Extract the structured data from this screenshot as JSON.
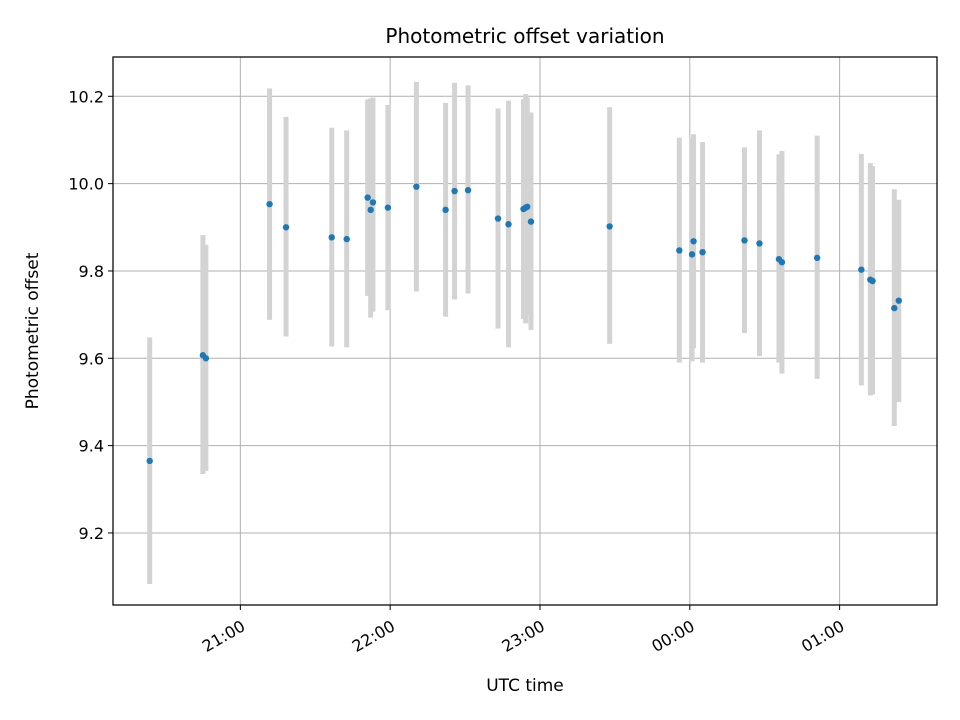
{
  "chart_data": {
    "type": "scatter",
    "title": "Photometric offset variation",
    "xlabel": "UTC time",
    "ylabel": "Photometric offset",
    "x_unit": "hours UTC (values >= 24 fall after midnight)",
    "xlim": [
      20.15,
      25.65
    ],
    "ylim": [
      9.035,
      10.29
    ],
    "x_ticks": [
      {
        "value": 21,
        "label": "21:00"
      },
      {
        "value": 22,
        "label": "22:00"
      },
      {
        "value": 23,
        "label": "23:00"
      },
      {
        "value": 24,
        "label": "00:00"
      },
      {
        "value": 25,
        "label": "01:00"
      }
    ],
    "y_ticks": [
      {
        "value": 9.2,
        "label": "9.2"
      },
      {
        "value": 9.4,
        "label": "9.4"
      },
      {
        "value": 9.6,
        "label": "9.6"
      },
      {
        "value": 9.8,
        "label": "9.8"
      },
      {
        "value": 10.0,
        "label": "10.0"
      },
      {
        "value": 10.2,
        "label": "10.2"
      }
    ],
    "grid": true,
    "x_tick_label_rotation": 30,
    "colors": {
      "marker": "#1f77b4",
      "errorbar": "#d3d3d3",
      "grid": "#b0b0b0",
      "axes": "#000000"
    },
    "series": [
      {
        "points": [
          {
            "x": 20.395,
            "y": 9.365,
            "ylo": 9.083,
            "yhi": 9.648
          },
          {
            "x": 20.75,
            "y": 9.607,
            "ylo": 9.335,
            "yhi": 9.882
          },
          {
            "x": 20.77,
            "y": 9.6,
            "ylo": 9.342,
            "yhi": 9.86
          },
          {
            "x": 21.195,
            "y": 9.953,
            "ylo": 9.688,
            "yhi": 10.218
          },
          {
            "x": 21.305,
            "y": 9.9,
            "ylo": 9.65,
            "yhi": 10.153
          },
          {
            "x": 21.61,
            "y": 9.877,
            "ylo": 9.627,
            "yhi": 10.128
          },
          {
            "x": 21.71,
            "y": 9.873,
            "ylo": 9.625,
            "yhi": 10.122
          },
          {
            "x": 21.85,
            "y": 9.968,
            "ylo": 9.743,
            "yhi": 10.193
          },
          {
            "x": 21.87,
            "y": 9.94,
            "ylo": 9.693,
            "yhi": 10.195
          },
          {
            "x": 21.885,
            "y": 9.957,
            "ylo": 9.707,
            "yhi": 10.197
          },
          {
            "x": 21.985,
            "y": 9.945,
            "ylo": 9.71,
            "yhi": 10.18
          },
          {
            "x": 22.175,
            "y": 9.993,
            "ylo": 9.753,
            "yhi": 10.233
          },
          {
            "x": 22.37,
            "y": 9.94,
            "ylo": 9.695,
            "yhi": 10.185
          },
          {
            "x": 22.43,
            "y": 9.983,
            "ylo": 9.735,
            "yhi": 10.231
          },
          {
            "x": 22.52,
            "y": 9.985,
            "ylo": 9.748,
            "yhi": 10.225
          },
          {
            "x": 22.72,
            "y": 9.92,
            "ylo": 9.668,
            "yhi": 10.172
          },
          {
            "x": 22.79,
            "y": 9.907,
            "ylo": 9.625,
            "yhi": 10.19
          },
          {
            "x": 22.89,
            "y": 9.942,
            "ylo": 9.69,
            "yhi": 10.193
          },
          {
            "x": 22.905,
            "y": 9.945,
            "ylo": 9.68,
            "yhi": 10.205
          },
          {
            "x": 22.915,
            "y": 9.947,
            "ylo": 9.7,
            "yhi": 10.197
          },
          {
            "x": 22.94,
            "y": 9.913,
            "ylo": 9.665,
            "yhi": 10.163
          },
          {
            "x": 23.465,
            "y": 9.902,
            "ylo": 9.633,
            "yhi": 10.175
          },
          {
            "x": 23.93,
            "y": 9.847,
            "ylo": 9.59,
            "yhi": 10.105
          },
          {
            "x": 24.015,
            "y": 9.838,
            "ylo": 9.593,
            "yhi": 10.105
          },
          {
            "x": 24.025,
            "y": 9.868,
            "ylo": 9.623,
            "yhi": 10.113
          },
          {
            "x": 24.085,
            "y": 9.843,
            "ylo": 9.59,
            "yhi": 10.095
          },
          {
            "x": 24.365,
            "y": 9.87,
            "ylo": 9.658,
            "yhi": 10.083
          },
          {
            "x": 24.465,
            "y": 9.863,
            "ylo": 9.605,
            "yhi": 10.122
          },
          {
            "x": 24.595,
            "y": 9.827,
            "ylo": 9.59,
            "yhi": 10.067
          },
          {
            "x": 24.615,
            "y": 9.82,
            "ylo": 9.565,
            "yhi": 10.075
          },
          {
            "x": 24.85,
            "y": 9.83,
            "ylo": 9.553,
            "yhi": 10.11
          },
          {
            "x": 25.145,
            "y": 9.803,
            "ylo": 9.538,
            "yhi": 10.068
          },
          {
            "x": 25.205,
            "y": 9.78,
            "ylo": 9.515,
            "yhi": 10.047
          },
          {
            "x": 25.22,
            "y": 9.777,
            "ylo": 9.517,
            "yhi": 10.04
          },
          {
            "x": 25.365,
            "y": 9.715,
            "ylo": 9.445,
            "yhi": 9.987
          },
          {
            "x": 25.395,
            "y": 9.732,
            "ylo": 9.5,
            "yhi": 9.963
          }
        ]
      }
    ]
  }
}
